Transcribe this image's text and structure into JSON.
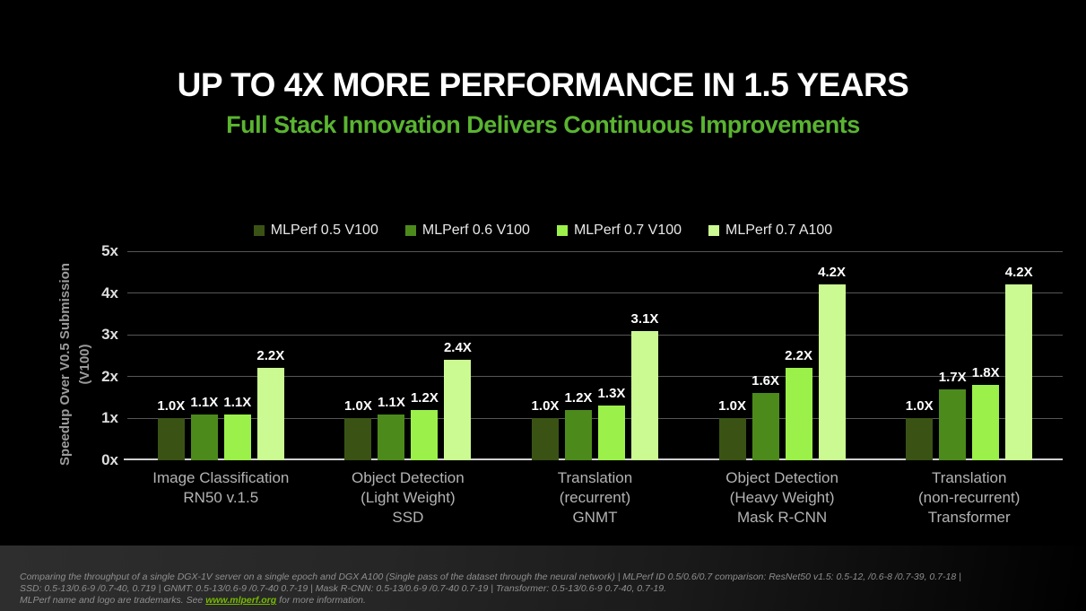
{
  "slide": {
    "title": "UP TO 4X MORE PERFORMANCE IN 1.5 YEARS",
    "subtitle": "Full Stack Innovation Delivers Continuous Improvements",
    "background_color": "#000000",
    "title_color": "#ffffff",
    "subtitle_color": "#5ab431"
  },
  "chart_data": {
    "type": "bar",
    "title": "",
    "xlabel": "",
    "ylabel": "Speedup Over V0.5 Submission (V100)",
    "ylabel_line1": "Speedup Over V0.5 Submission",
    "ylabel_line2": "(V100)",
    "ylim": [
      0,
      5
    ],
    "yticks": [
      "0x",
      "1x",
      "2x",
      "3x",
      "4x",
      "5x"
    ],
    "grid": true,
    "legend_position": "top",
    "categories": [
      [
        "Image Classification",
        "RN50 v.1.5"
      ],
      [
        "Object Detection",
        "(Light Weight)",
        "SSD"
      ],
      [
        "Translation",
        "(recurrent)",
        "GNMT"
      ],
      [
        "Object Detection",
        "(Heavy Weight)",
        "Mask R-CNN"
      ],
      [
        "Translation",
        "(non-recurrent)",
        "Transformer"
      ]
    ],
    "series": [
      {
        "name": "MLPerf 0.5 V100",
        "color": "#3a5315",
        "values": [
          1.0,
          1.0,
          1.0,
          1.0,
          1.0
        ],
        "labels": [
          "1.0X",
          "1.0X",
          "1.0X",
          "1.0X",
          "1.0X"
        ]
      },
      {
        "name": "MLPerf 0.6 V100",
        "color": "#4d8a1c",
        "values": [
          1.1,
          1.1,
          1.2,
          1.6,
          1.7
        ],
        "labels": [
          "1.1X",
          "1.1X",
          "1.2X",
          "1.6X",
          "1.7X"
        ]
      },
      {
        "name": "MLPerf 0.7 V100",
        "color": "#9cf04a",
        "values": [
          1.1,
          1.2,
          1.3,
          2.2,
          1.8
        ],
        "labels": [
          "1.1X",
          "1.2X",
          "1.3X",
          "2.2X",
          "1.8X"
        ]
      },
      {
        "name": "MLPerf 0.7 A100",
        "color": "#ccfa92",
        "values": [
          2.2,
          2.4,
          3.1,
          4.2,
          4.2
        ],
        "labels": [
          "2.2X",
          "2.4X",
          "3.1X",
          "4.2X",
          "4.2X"
        ]
      }
    ]
  },
  "footer": {
    "line1": "Comparing the throughput of a single DGX-1V server on a single epoch and DGX A100 (Single pass of the dataset through the neural network)  |  MLPerf ID 0.5/0.6/0.7 comparison: ResNet50 v1.5: 0.5-12, /0.6-8 /0.7-39, 0.7-18   |",
    "line2": "SSD: 0.5-13/0.6-9 /0.7-40, 0.719 |   GNMT: 0.5-13/0.6-9 /0.7-40 0.7-19   |   Mask R-CNN: 0.5-13/0.6-9 /0.7-40 0.7-19 | Transformer: 0.5-13/0.6-9 0.7-40, 0.7-19.",
    "line3_before_link": "MLPerf name and logo are trademarks. See ",
    "link_text": "www.mlperf.org",
    "line3_after_link": " for more information."
  }
}
